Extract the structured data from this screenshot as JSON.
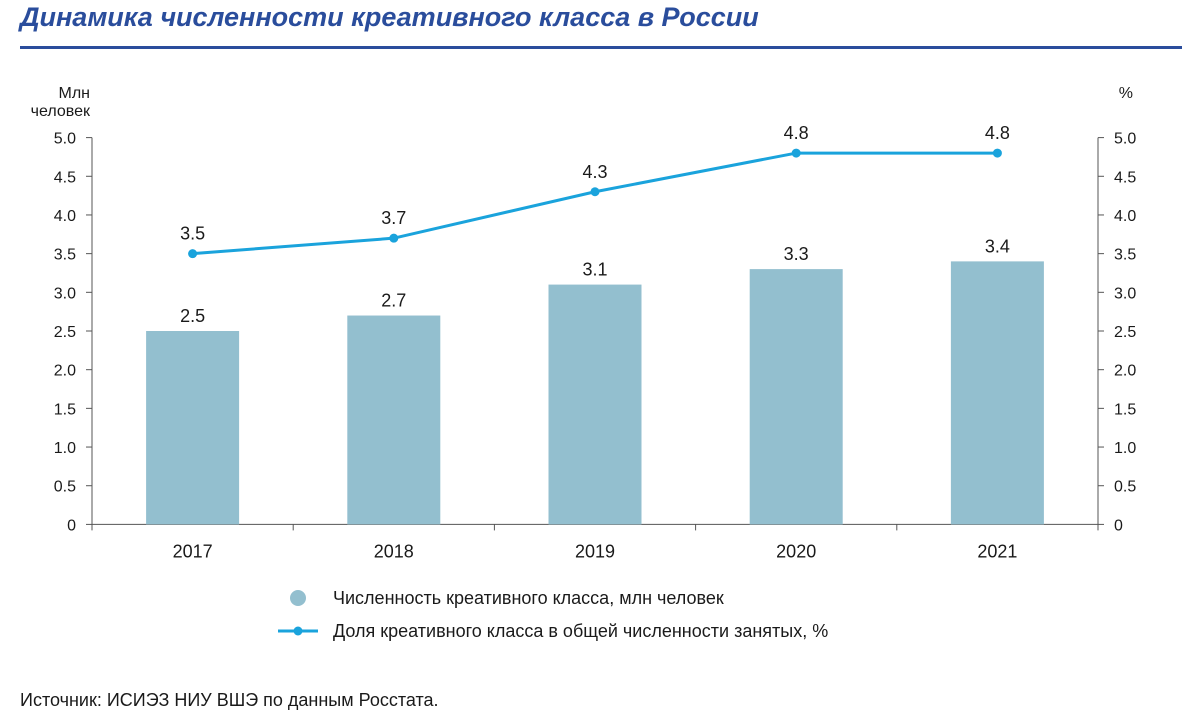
{
  "title": "Динамика численности креативного класса в России",
  "source": "Источник: ИСИЭЗ НИУ ВШЭ по данным Росстата.",
  "colors": {
    "title": "#2a4d9c",
    "bar": "#93bfcf",
    "line": "#1aa3dc",
    "axis": "#555555"
  },
  "chart_data": {
    "type": "bar",
    "categories": [
      "2017",
      "2018",
      "2019",
      "2020",
      "2021"
    ],
    "series": [
      {
        "name": "Численность креативного класса, млн человек",
        "type": "bar",
        "axis": "left",
        "values": [
          2.5,
          2.7,
          3.1,
          3.3,
          3.4
        ]
      },
      {
        "name": "Доля креативного класса в общей численности занятых, %",
        "type": "line",
        "axis": "right",
        "values": [
          3.5,
          3.7,
          4.3,
          4.8,
          4.8
        ]
      }
    ],
    "ylabel_left_lines": [
      "Млн",
      "человек"
    ],
    "ylabel_right": "%",
    "ylim": [
      0,
      5
    ],
    "yticks": [
      0,
      0.5,
      1,
      1.5,
      2,
      2.5,
      3,
      3.5,
      4,
      4.5,
      5
    ],
    "ytick_labels": [
      "0",
      "0.5",
      "1.0",
      "1.5",
      "2.0",
      "2.5",
      "3.0",
      "3.5",
      "4.0",
      "4.5",
      "5.0"
    ],
    "grid": false,
    "legend_position": "bottom"
  }
}
